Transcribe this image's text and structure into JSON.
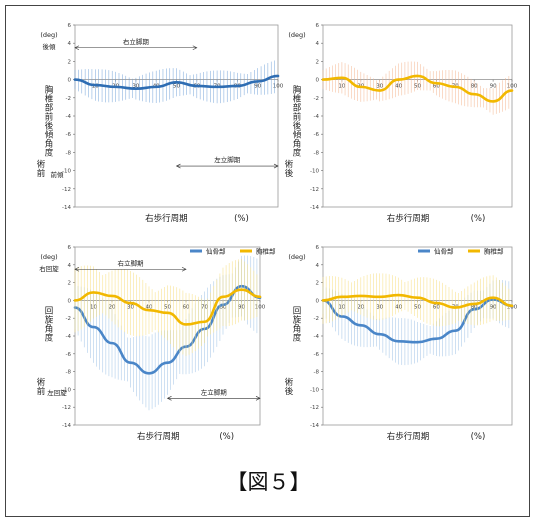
{
  "caption": "【図５】",
  "chart_data": [
    {
      "type": "line",
      "panel": "top-left",
      "ylabel_top": "(deg)",
      "ylabel_upper": "後傾",
      "ylabel_main": "胸椎部前後傾角度",
      "ylabel_lower_a": "前傾",
      "ylabel_lower_b": "術前",
      "xlabel": "右歩行周期",
      "xunit": "(%)",
      "ylim": [
        -14,
        6
      ],
      "xlim": [
        0,
        100
      ],
      "yticks": [
        "6",
        "4",
        "2",
        "0",
        "-2",
        "-4",
        "-6",
        "-8",
        "-10",
        "-12",
        "-14"
      ],
      "xticks": [
        "10",
        "20",
        "30",
        "40",
        "50",
        "60",
        "70",
        "80",
        "90",
        "100"
      ],
      "annotations": [
        {
          "text": "右立脚期",
          "x1": 0,
          "x2": 60,
          "y": 3.5
        },
        {
          "text": "左立脚期",
          "x1": 50,
          "x2": 100,
          "y": -9.5
        }
      ],
      "series": [
        {
          "color": "#2e6db3",
          "band": "#6fa0d8",
          "bandWidth": 1.5,
          "x": [
            0,
            10,
            20,
            30,
            40,
            50,
            60,
            70,
            80,
            90,
            100
          ],
          "y": [
            0,
            -0.6,
            -0.8,
            -1.0,
            -0.8,
            -0.3,
            -0.7,
            -0.8,
            -0.7,
            -0.2,
            0.4
          ]
        }
      ]
    },
    {
      "type": "line",
      "panel": "top-right",
      "ylabel_top": "(deg)",
      "ylabel_main": "胸椎部前後傾角度",
      "ylabel_lower_b": "術後",
      "xlabel": "右歩行周期",
      "xunit": "(%)",
      "ylim": [
        -14,
        6
      ],
      "xlim": [
        0,
        100
      ],
      "yticks": [
        "6",
        "4",
        "2",
        "0",
        "-2",
        "-4",
        "-6",
        "-8",
        "-10",
        "-12",
        "-14"
      ],
      "xticks": [
        "10",
        "20",
        "30",
        "40",
        "50",
        "60",
        "70",
        "80",
        "90",
        "100"
      ],
      "series": [
        {
          "color": "#f2b800",
          "band": "#f4b48c",
          "bandWidth": 1.5,
          "x": [
            0,
            10,
            20,
            30,
            40,
            50,
            60,
            70,
            80,
            90,
            100
          ],
          "y": [
            0,
            0.2,
            -0.8,
            -1.2,
            0,
            0.4,
            -0.4,
            -0.8,
            -1.6,
            -2.4,
            -1.2
          ]
        }
      ]
    },
    {
      "type": "line",
      "panel": "bottom-left",
      "ylabel_top": "(deg)",
      "ylabel_upper": "右回旋",
      "ylabel_main": "回旋角度",
      "ylabel_lower_a": "左回旋",
      "ylabel_lower_b": "術前",
      "xlabel": "右歩行周期",
      "xunit": "(%)",
      "ylim": [
        -14,
        6
      ],
      "xlim": [
        0,
        100
      ],
      "yticks": [
        "6",
        "4",
        "2",
        "0",
        "-2",
        "-4",
        "-6",
        "-8",
        "-10",
        "-12",
        "-14"
      ],
      "xticks": [
        "10",
        "20",
        "30",
        "40",
        "50",
        "60",
        "70",
        "80",
        "90",
        "100"
      ],
      "legend": [
        "仙骨部",
        "胸椎部"
      ],
      "annotations": [
        {
          "text": "右立脚期",
          "x1": 0,
          "x2": 60,
          "y": 3.5
        },
        {
          "text": "左立脚期",
          "x1": 50,
          "x2": 100,
          "y": -11
        }
      ],
      "series": [
        {
          "name": "仙骨部",
          "color": "#4a86c8",
          "band": "#9cc0e6",
          "bandWidth": 3.5,
          "x": [
            0,
            10,
            20,
            30,
            40,
            50,
            60,
            70,
            80,
            90,
            100
          ],
          "y": [
            -0.8,
            -3,
            -4.8,
            -7,
            -8.2,
            -7,
            -5.2,
            -3.2,
            -0.5,
            1.6,
            0.3
          ]
        },
        {
          "name": "胸椎部",
          "color": "#f2b800",
          "band": "#f7dd7a",
          "bandWidth": 3,
          "x": [
            0,
            10,
            20,
            30,
            40,
            50,
            60,
            70,
            80,
            90,
            100
          ],
          "y": [
            0,
            0.9,
            0.5,
            -0.3,
            -1.1,
            -1.4,
            -2.7,
            -2.4,
            0.4,
            1.2,
            0.4
          ]
        }
      ]
    },
    {
      "type": "line",
      "panel": "bottom-right",
      "ylabel_top": "(deg)",
      "ylabel_main": "回旋角度",
      "ylabel_lower_b": "術後",
      "xlabel": "右歩行周期",
      "xunit": "(%)",
      "ylim": [
        -14,
        6
      ],
      "xlim": [
        0,
        100
      ],
      "yticks": [
        "6",
        "4",
        "2",
        "0",
        "-2",
        "-4",
        "-6",
        "-8",
        "-10",
        "-12",
        "-14"
      ],
      "xticks": [
        "10",
        "20",
        "30",
        "40",
        "50",
        "60",
        "70",
        "80",
        "90",
        "100"
      ],
      "legend": [
        "仙骨部",
        "胸椎部"
      ],
      "series": [
        {
          "name": "仙骨部",
          "color": "#4a86c8",
          "band": "#9cc0e6",
          "bandWidth": 2.2,
          "x": [
            0,
            10,
            20,
            30,
            40,
            50,
            60,
            70,
            80,
            90,
            100
          ],
          "y": [
            0,
            -1.8,
            -2.8,
            -3.8,
            -4.6,
            -4.7,
            -4.3,
            -3.4,
            -1,
            0.1,
            -0.6
          ]
        },
        {
          "name": "胸椎部",
          "color": "#f2b800",
          "band": "#f7dd7a",
          "bandWidth": 2.2,
          "x": [
            0,
            10,
            20,
            30,
            40,
            50,
            60,
            70,
            80,
            90,
            100
          ],
          "y": [
            0,
            0.4,
            0.5,
            0.4,
            0.6,
            0.3,
            -0.3,
            -0.8,
            -0.4,
            0.3,
            -0.6
          ]
        }
      ]
    }
  ]
}
